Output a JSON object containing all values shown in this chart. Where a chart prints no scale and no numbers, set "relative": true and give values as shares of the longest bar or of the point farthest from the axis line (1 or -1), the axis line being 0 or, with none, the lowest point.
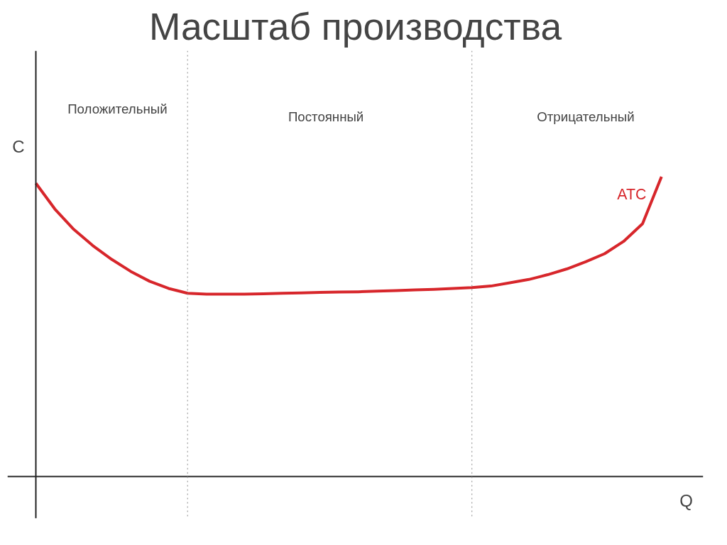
{
  "chart_data": {
    "type": "line",
    "title": "Масштаб производства",
    "xlabel": "Q",
    "ylabel": "C",
    "relative": true,
    "categories": [
      null,
      null,
      null,
      null,
      null,
      null,
      null,
      null,
      null,
      null,
      null,
      null,
      null,
      null,
      null,
      null,
      null,
      null,
      null,
      null,
      null,
      null,
      null,
      null,
      null,
      null,
      null,
      null,
      null,
      null,
      null,
      null,
      null,
      null
    ],
    "series": [
      {
        "name": "ATC",
        "color": "#d7262b",
        "values": [
          0.978,
          0.892,
          0.824,
          0.77,
          0.724,
          0.684,
          0.651,
          0.627,
          0.611,
          0.608,
          0.608,
          0.608,
          0.609,
          0.611,
          0.612,
          0.614,
          0.615,
          0.616,
          0.618,
          0.62,
          0.622,
          0.624,
          0.627,
          0.63,
          0.635,
          0.646,
          0.657,
          0.673,
          0.692,
          0.716,
          0.743,
          0.784,
          0.843,
          1.0
        ]
      }
    ],
    "annotations": [
      "Положительный",
      "Постоянный",
      "Отрицательный"
    ],
    "marker": "none",
    "line_style": "solid"
  }
}
